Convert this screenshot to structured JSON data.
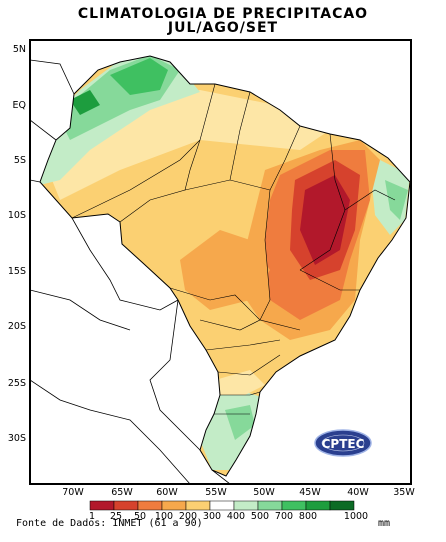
{
  "title": "CLIMATOLOGIA DE PRECIPITACAO",
  "subtitle": "JUL/AGO/SET",
  "lat_labels": [
    "5N",
    "EQ",
    "5S",
    "10S",
    "15S",
    "20S",
    "25S",
    "30S"
  ],
  "lon_labels": [
    "70W",
    "65W",
    "60W",
    "55W",
    "50W",
    "45W",
    "40W",
    "35W"
  ],
  "legend": {
    "breaks": [
      "1",
      "25",
      "50",
      "100",
      "200",
      "300",
      "400",
      "500",
      "700",
      "800",
      "1000"
    ],
    "colors": [
      "#b2182b",
      "#d6422d",
      "#ef7c3e",
      "#f6a84c",
      "#fbd072",
      "#ffffff",
      "#c3ecc7",
      "#86d99a",
      "#3fc061",
      "#1d9d3e",
      "#0c6b25"
    ],
    "unit": "mm"
  },
  "source": "Fonte de Dados: INMET (61 a 90)",
  "logo_text": "CPTEC"
}
